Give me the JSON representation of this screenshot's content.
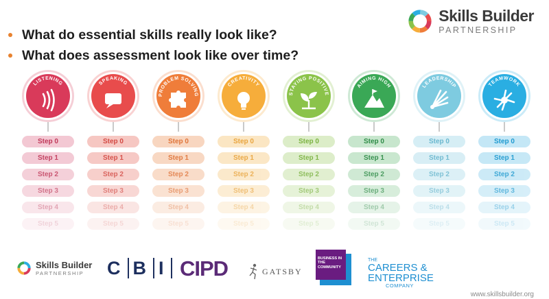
{
  "brand": {
    "name": "Skills Builder",
    "sub": "PARTNERSHIP"
  },
  "questions": [
    "What do essential skills really look like?",
    "What does assessment look like over time?"
  ],
  "skills": [
    {
      "name": "LISTENING",
      "color": "#d93a5a",
      "light": "#f3c8d3",
      "text": "#c0395a",
      "icon": "ear-icon"
    },
    {
      "name": "SPEAKING",
      "color": "#e84c4c",
      "light": "#f6c7c2",
      "text": "#d44a44",
      "icon": "speech-bubble-icon"
    },
    {
      "name": "PROBLEM SOLVING",
      "color": "#ef7d3a",
      "light": "#f8d6c0",
      "text": "#e0753a",
      "icon": "puzzle-icon"
    },
    {
      "name": "CREATIVITY",
      "color": "#f6ad3b",
      "light": "#fbe6c3",
      "text": "#e9a53e",
      "icon": "lightbulb-icon"
    },
    {
      "name": "STAYING POSITIVE",
      "color": "#8bc34a",
      "light": "#dcedc8",
      "text": "#7cb342",
      "icon": "sprout-icon"
    },
    {
      "name": "AIMING HIGH",
      "color": "#3aa856",
      "light": "#c7e6cd",
      "text": "#2e8c47",
      "icon": "mountain-flag-icon"
    },
    {
      "name": "LEADERSHIP",
      "color": "#7ecbe0",
      "light": "#d6eef5",
      "text": "#6bb8cf",
      "icon": "leadership-rays-icon"
    },
    {
      "name": "TEAMWORK",
      "color": "#2aaee2",
      "light": "#c4e7f6",
      "text": "#1e9ad0",
      "icon": "teamwork-hub-icon"
    }
  ],
  "steps": [
    "Step 0",
    "Step 1",
    "Step 2",
    "Step 3",
    "Step 4",
    "Step 5"
  ],
  "footer": {
    "skills_builder": {
      "name": "Skills Builder",
      "sub": "PARTNERSHIP"
    },
    "cbi": [
      "C",
      "B",
      "I"
    ],
    "cipd": "CIPD",
    "gatsby": "GATSBY",
    "bitc": "BUSINESS IN THE COMMUNITY",
    "cec": {
      "the": "THE",
      "line1": "CAREERS &",
      "line2": "ENTERPRISE",
      "line3": "COMPANY"
    },
    "url": "www.skillsbuilder.org"
  }
}
